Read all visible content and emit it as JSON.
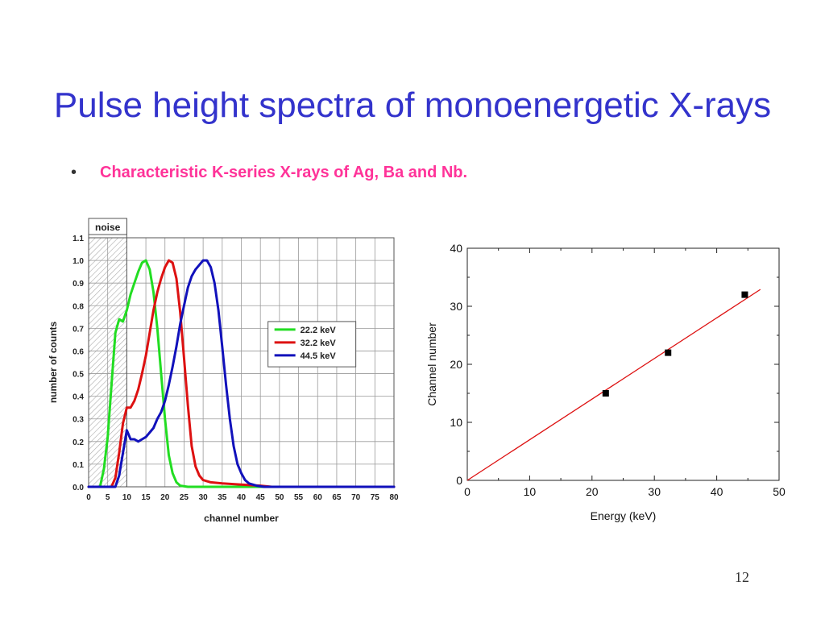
{
  "slide": {
    "title": "Pulse height spectra of monoenergetic X-rays",
    "bullet": "Characteristic K-series X-rays of Ag, Ba and Nb.",
    "page_number": "12"
  },
  "chart_data": [
    {
      "type": "line",
      "xlabel": "channel number",
      "ylabel": "number of counts",
      "xlim": [
        0,
        80
      ],
      "ylim": [
        0,
        1.1
      ],
      "x_ticks": [
        "0",
        "5",
        "10",
        "15",
        "20",
        "25",
        "30",
        "35",
        "40",
        "45",
        "50",
        "55",
        "60",
        "65",
        "70",
        "75",
        "80"
      ],
      "y_ticks": [
        "0.0",
        "0.1",
        "0.2",
        "0.3",
        "0.4",
        "0.5",
        "0.6",
        "0.7",
        "0.8",
        "0.9",
        "1.0",
        "1.1"
      ],
      "grid": true,
      "legend_position": "right",
      "annotation": {
        "label": "noise",
        "x_range": [
          0,
          10
        ]
      },
      "series": [
        {
          "name": "22.2 keV",
          "color": "#22dd22",
          "points": [
            [
              0,
              0
            ],
            [
              3,
              0
            ],
            [
              4,
              0.08
            ],
            [
              5,
              0.22
            ],
            [
              6,
              0.45
            ],
            [
              7,
              0.68
            ],
            [
              8,
              0.74
            ],
            [
              9,
              0.73
            ],
            [
              10,
              0.78
            ],
            [
              11,
              0.85
            ],
            [
              12,
              0.9
            ],
            [
              13,
              0.95
            ],
            [
              14,
              0.99
            ],
            [
              15,
              1.0
            ],
            [
              16,
              0.96
            ],
            [
              17,
              0.86
            ],
            [
              18,
              0.7
            ],
            [
              19,
              0.5
            ],
            [
              20,
              0.3
            ],
            [
              21,
              0.14
            ],
            [
              22,
              0.06
            ],
            [
              23,
              0.02
            ],
            [
              24,
              0.005
            ],
            [
              26,
              0
            ],
            [
              80,
              0
            ]
          ]
        },
        {
          "name": "32.2 keV",
          "color": "#dd1111",
          "points": [
            [
              0,
              0
            ],
            [
              6,
              0
            ],
            [
              7,
              0.04
            ],
            [
              8,
              0.15
            ],
            [
              9,
              0.28
            ],
            [
              10,
              0.35
            ],
            [
              11,
              0.35
            ],
            [
              12,
              0.38
            ],
            [
              13,
              0.43
            ],
            [
              14,
              0.5
            ],
            [
              15,
              0.58
            ],
            [
              16,
              0.68
            ],
            [
              17,
              0.78
            ],
            [
              18,
              0.86
            ],
            [
              19,
              0.92
            ],
            [
              20,
              0.97
            ],
            [
              21,
              1.0
            ],
            [
              22,
              0.99
            ],
            [
              23,
              0.92
            ],
            [
              24,
              0.77
            ],
            [
              25,
              0.57
            ],
            [
              26,
              0.36
            ],
            [
              27,
              0.18
            ],
            [
              28,
              0.09
            ],
            [
              29,
              0.05
            ],
            [
              30,
              0.03
            ],
            [
              32,
              0.02
            ],
            [
              35,
              0.015
            ],
            [
              40,
              0.01
            ],
            [
              45,
              0.005
            ],
            [
              48,
              0
            ],
            [
              80,
              0
            ]
          ]
        },
        {
          "name": "44.5 keV",
          "color": "#1111bb",
          "points": [
            [
              0,
              0
            ],
            [
              7,
              0
            ],
            [
              8,
              0.05
            ],
            [
              9,
              0.15
            ],
            [
              10,
              0.25
            ],
            [
              11,
              0.21
            ],
            [
              12,
              0.21
            ],
            [
              13,
              0.2
            ],
            [
              14,
              0.21
            ],
            [
              15,
              0.22
            ],
            [
              16,
              0.24
            ],
            [
              17,
              0.26
            ],
            [
              18,
              0.3
            ],
            [
              19,
              0.33
            ],
            [
              20,
              0.38
            ],
            [
              21,
              0.45
            ],
            [
              22,
              0.53
            ],
            [
              23,
              0.62
            ],
            [
              24,
              0.72
            ],
            [
              25,
              0.8
            ],
            [
              26,
              0.88
            ],
            [
              27,
              0.93
            ],
            [
              28,
              0.96
            ],
            [
              29,
              0.98
            ],
            [
              30,
              1.0
            ],
            [
              31,
              1.0
            ],
            [
              32,
              0.97
            ],
            [
              33,
              0.9
            ],
            [
              34,
              0.78
            ],
            [
              35,
              0.62
            ],
            [
              36,
              0.45
            ],
            [
              37,
              0.3
            ],
            [
              38,
              0.18
            ],
            [
              39,
              0.1
            ],
            [
              40,
              0.06
            ],
            [
              41,
              0.03
            ],
            [
              42,
              0.015
            ],
            [
              44,
              0.005
            ],
            [
              46,
              0
            ],
            [
              80,
              0
            ]
          ]
        }
      ]
    },
    {
      "type": "scatter",
      "xlabel": "Energy (keV)",
      "ylabel": "Channel number",
      "xlim": [
        0,
        50
      ],
      "ylim": [
        0,
        40
      ],
      "x_ticks": [
        "0",
        "10",
        "20",
        "30",
        "40",
        "50"
      ],
      "y_ticks": [
        "0",
        "10",
        "20",
        "30",
        "40"
      ],
      "grid": false,
      "points": [
        [
          22.2,
          15
        ],
        [
          32.2,
          22
        ],
        [
          44.5,
          32
        ]
      ],
      "fit_line": {
        "color": "#dd1111",
        "points": [
          [
            0,
            0
          ],
          [
            47,
            32.9
          ]
        ]
      }
    }
  ]
}
